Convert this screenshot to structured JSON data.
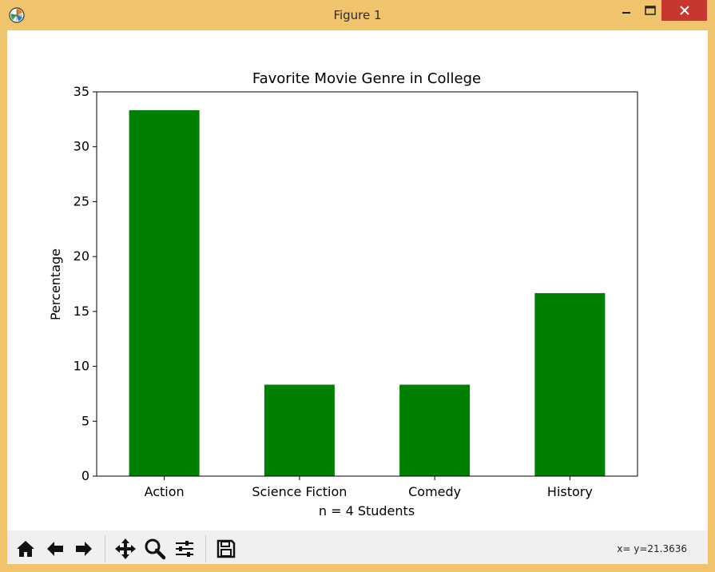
{
  "window": {
    "title": "Figure 1",
    "controls": [
      "minimize-icon",
      "maximize-icon",
      "close-icon"
    ]
  },
  "toolbar": {
    "buttons": [
      "home-icon",
      "back-arrow-icon",
      "forward-arrow-icon",
      "pan-icon",
      "zoom-icon",
      "configure-subplots-icon",
      "save-icon"
    ],
    "status": "x= y=21.3636"
  },
  "colors": {
    "bar": "#008000",
    "frame": "#f0c46c",
    "close_button": "#c7372f"
  },
  "chart_data": {
    "type": "bar",
    "title": "Favorite Movie Genre in College",
    "xlabel": "n = 4 Students",
    "ylabel": "Percentage",
    "categories": [
      "Action",
      "Science Fiction",
      "Comedy",
      "History"
    ],
    "values": [
      33.33,
      8.33,
      8.33,
      16.67
    ],
    "ylim": [
      0,
      35
    ],
    "yticks": [
      0,
      5,
      10,
      15,
      20,
      25,
      30,
      35
    ],
    "grid": false,
    "legend": "none"
  }
}
